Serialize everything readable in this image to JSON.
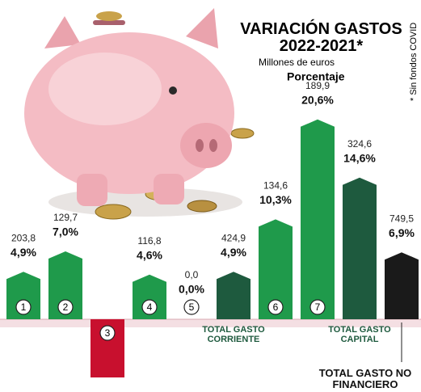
{
  "chart_data": {
    "type": "bar",
    "title": "VARIACIÓN GASTOS 2022-2021*",
    "note": "* Sin fondos COVID",
    "categories": [
      "1",
      "2",
      "3",
      "4",
      "5",
      "TOTAL GASTO CORRIENTE",
      "6",
      "7",
      "TOTAL GASTO CAPITAL",
      "TOTAL GASTO NO FINANCIERO"
    ],
    "colors": [
      "#1f9a4b",
      "#1f9a4b",
      "#c8102e",
      "#1f9a4b",
      "#1f9a4b",
      "#1e5a3e",
      "#1f9a4b",
      "#1f9a4b",
      "#1e5a3e",
      "#1a1a1a"
    ],
    "series": [
      {
        "name": "Millones de euros",
        "color": "#222222",
        "values": [
          203.8,
          129.7,
          null,
          116.8,
          0,
          424.9,
          134.6,
          189.9,
          324.6,
          749.5
        ],
        "value_labels": [
          "203,8",
          "129,7",
          null,
          "116,8",
          "0,0",
          "424,9",
          "134,6",
          "189,9",
          "324,6",
          "749,5"
        ]
      },
      {
        "name": "Porcentaje",
        "color": "#111111",
        "values": [
          4.9,
          7.0,
          -6,
          4.6,
          0,
          4.9,
          10.3,
          20.6,
          14.6,
          6.9
        ],
        "value_labels": [
          "4,9%",
          "7,0%",
          null,
          "4,6%",
          "0,0%",
          "4,9%",
          "10,3%",
          "20,6%",
          "14,6%",
          "6,9%"
        ]
      }
    ],
    "ylim": [
      -7.5,
      22
    ]
  }
}
